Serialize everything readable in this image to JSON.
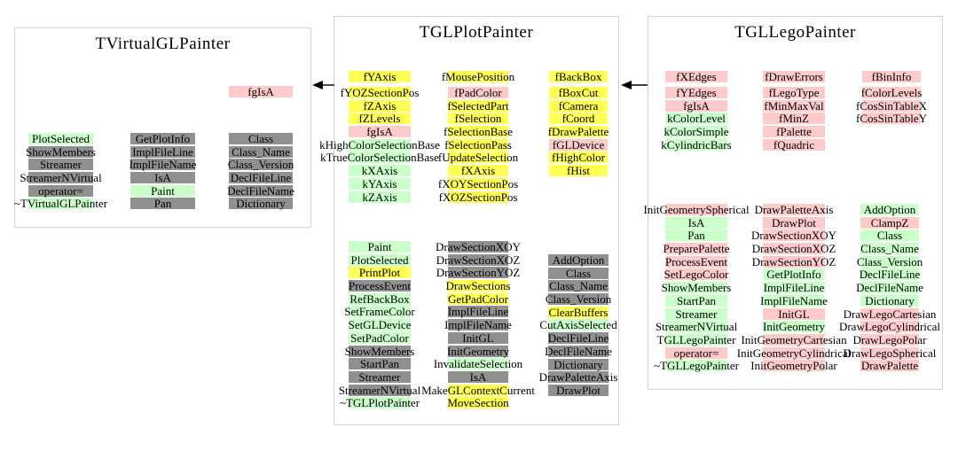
{
  "palette": {
    "yellow": "#ffff54",
    "pink": "#ffcaca",
    "green": "#caffca",
    "gray": "#909090"
  },
  "relations": [
    {
      "from": "TGLPlotPainter",
      "to": "TVirtualGLPainter"
    },
    {
      "from": "TGLLegoPainter",
      "to": "TGLPlotPainter"
    }
  ],
  "boxes": [
    {
      "title": "TVirtualGLPainter",
      "sections": [
        {
          "name": "data-members",
          "columns": [
            {
              "cells": [
                {
                  "label": "fgIsA",
                  "color": "pink"
                }
              ]
            }
          ]
        },
        {
          "name": "methods",
          "columns": [
            {
              "cells": [
                {
                  "label": "PlotSelected",
                  "color": "green"
                },
                {
                  "label": "ShowMembers",
                  "color": "gray"
                },
                {
                  "label": "Streamer",
                  "color": "gray"
                },
                {
                  "label": "StreamerNVirtual",
                  "color": "gray"
                },
                {
                  "label": "operator=",
                  "color": "gray"
                },
                {
                  "label": "~TVirtualGLPainter",
                  "color": "green"
                }
              ]
            },
            {
              "cells": [
                {
                  "label": "GetPlotInfo",
                  "color": "gray"
                },
                {
                  "label": "ImplFileLine",
                  "color": "gray"
                },
                {
                  "label": "ImplFileName",
                  "color": "gray"
                },
                {
                  "label": "IsA",
                  "color": "gray"
                },
                {
                  "label": "Paint",
                  "color": "green"
                },
                {
                  "label": "Pan",
                  "color": "gray"
                }
              ]
            },
            {
              "cells": [
                {
                  "label": "Class",
                  "color": "gray"
                },
                {
                  "label": "Class_Name",
                  "color": "gray"
                },
                {
                  "label": "Class_Version",
                  "color": "gray"
                },
                {
                  "label": "DeclFileLine",
                  "color": "gray"
                },
                {
                  "label": "DeclFileName",
                  "color": "gray"
                },
                {
                  "label": "Dictionary",
                  "color": "gray"
                }
              ]
            }
          ]
        }
      ]
    },
    {
      "title": "TGLPlotPainter",
      "sections": [
        {
          "name": "data-members",
          "columns": [
            {
              "cells": [
                {
                  "label": "fYAxis",
                  "color": "yellow"
                },
                {
                  "label": "fYOZSectionPos",
                  "color": "yellow"
                },
                {
                  "label": "fZAxis",
                  "color": "yellow"
                },
                {
                  "label": "fZLevels",
                  "color": "yellow"
                },
                {
                  "label": "fgIsA",
                  "color": "pink"
                },
                {
                  "label": "kHighColorSelectionBase",
                  "color": "green"
                },
                {
                  "label": "kTrueColorSelectionBase",
                  "color": "green"
                },
                {
                  "label": "kXAxis",
                  "color": "green"
                },
                {
                  "label": "kYAxis",
                  "color": "green"
                },
                {
                  "label": "kZAxis",
                  "color": "green"
                }
              ]
            },
            {
              "cells": [
                {
                  "label": "fMousePosition",
                  "color": "yellow"
                },
                {
                  "label": "fPadColor",
                  "color": "pink"
                },
                {
                  "label": "fSelectedPart",
                  "color": "yellow"
                },
                {
                  "label": "fSelection",
                  "color": "yellow"
                },
                {
                  "label": "fSelectionBase",
                  "color": "yellow"
                },
                {
                  "label": "fSelectionPass",
                  "color": "yellow"
                },
                {
                  "label": "fUpdateSelection",
                  "color": "yellow"
                },
                {
                  "label": "fXAxis",
                  "color": "yellow"
                },
                {
                  "label": "fXOYSectionPos",
                  "color": "yellow"
                },
                {
                  "label": "fXOZSectionPos",
                  "color": "yellow"
                }
              ]
            },
            {
              "cells": [
                {
                  "label": "fBackBox",
                  "color": "yellow"
                },
                {
                  "label": "fBoxCut",
                  "color": "yellow"
                },
                {
                  "label": "fCamera",
                  "color": "yellow"
                },
                {
                  "label": "fCoord",
                  "color": "yellow"
                },
                {
                  "label": "fDrawPalette",
                  "color": "yellow"
                },
                {
                  "label": "fGLDevice",
                  "color": "pink"
                },
                {
                  "label": "fHighColor",
                  "color": "yellow"
                },
                {
                  "label": "fHist",
                  "color": "yellow"
                }
              ]
            }
          ]
        },
        {
          "name": "methods",
          "columns": [
            {
              "cells": [
                {
                  "label": "Paint",
                  "color": "green"
                },
                {
                  "label": "PlotSelected",
                  "color": "green"
                },
                {
                  "label": "PrintPlot",
                  "color": "yellow"
                },
                {
                  "label": "ProcessEvent",
                  "color": "gray"
                },
                {
                  "label": "RefBackBox",
                  "color": "green"
                },
                {
                  "label": "SetFrameColor",
                  "color": "green"
                },
                {
                  "label": "SetGLDevice",
                  "color": "green"
                },
                {
                  "label": "SetPadColor",
                  "color": "green"
                },
                {
                  "label": "ShowMembers",
                  "color": "gray"
                },
                {
                  "label": "StartPan",
                  "color": "gray"
                },
                {
                  "label": "Streamer",
                  "color": "gray"
                },
                {
                  "label": "StreamerNVirtual",
                  "color": "gray"
                },
                {
                  "label": "~TGLPlotPainter",
                  "color": "green"
                }
              ]
            },
            {
              "cells": [
                {
                  "label": "DrawSectionXOY",
                  "color": "gray"
                },
                {
                  "label": "DrawSectionXOZ",
                  "color": "gray"
                },
                {
                  "label": "DrawSectionYOZ",
                  "color": "gray"
                },
                {
                  "label": "DrawSections",
                  "color": "yellow"
                },
                {
                  "label": "GetPadColor",
                  "color": "yellow"
                },
                {
                  "label": "ImplFileLine",
                  "color": "gray"
                },
                {
                  "label": "ImplFileName",
                  "color": "gray"
                },
                {
                  "label": "InitGL",
                  "color": "gray"
                },
                {
                  "label": "InitGeometry",
                  "color": "gray"
                },
                {
                  "label": "InvalidateSelection",
                  "color": "green"
                },
                {
                  "label": "IsA",
                  "color": "gray"
                },
                {
                  "label": "MakeGLContextCurrent",
                  "color": "yellow"
                },
                {
                  "label": "MoveSection",
                  "color": "yellow"
                }
              ]
            },
            {
              "cells": [
                {
                  "label": "AddOption",
                  "color": "gray"
                },
                {
                  "label": "Class",
                  "color": "gray"
                },
                {
                  "label": "Class_Name",
                  "color": "gray"
                },
                {
                  "label": "Class_Version",
                  "color": "gray"
                },
                {
                  "label": "ClearBuffers",
                  "color": "yellow"
                },
                {
                  "label": "CutAxisSelected",
                  "color": "green"
                },
                {
                  "label": "DeclFileLine",
                  "color": "gray"
                },
                {
                  "label": "DeclFileName",
                  "color": "gray"
                },
                {
                  "label": "Dictionary",
                  "color": "gray"
                },
                {
                  "label": "DrawPaletteAxis",
                  "color": "gray"
                },
                {
                  "label": "DrawPlot",
                  "color": "gray"
                }
              ]
            }
          ]
        }
      ]
    },
    {
      "title": "TGLLegoPainter",
      "sections": [
        {
          "name": "data-members",
          "columns": [
            {
              "cells": [
                {
                  "label": "fXEdges",
                  "color": "pink"
                },
                {
                  "label": "fYEdges",
                  "color": "pink"
                },
                {
                  "label": "fgIsA",
                  "color": "pink"
                },
                {
                  "label": "kColorLevel",
                  "color": "green"
                },
                {
                  "label": "kColorSimple",
                  "color": "green"
                },
                {
                  "label": "kCylindricBars",
                  "color": "green"
                }
              ]
            },
            {
              "cells": [
                {
                  "label": "fDrawErrors",
                  "color": "pink"
                },
                {
                  "label": "fLegoType",
                  "color": "pink"
                },
                {
                  "label": "fMinMaxVal",
                  "color": "pink"
                },
                {
                  "label": "fMinZ",
                  "color": "pink"
                },
                {
                  "label": "fPalette",
                  "color": "pink"
                },
                {
                  "label": "fQuadric",
                  "color": "pink"
                }
              ]
            },
            {
              "cells": [
                {
                  "label": "fBinInfo",
                  "color": "pink"
                },
                {
                  "label": "fColorLevels",
                  "color": "pink"
                },
                {
                  "label": "fCosSinTableX",
                  "color": "pink"
                },
                {
                  "label": "fCosSinTableY",
                  "color": "pink"
                }
              ]
            }
          ]
        },
        {
          "name": "methods",
          "columns": [
            {
              "cells": [
                {
                  "label": "InitGeometrySpherical",
                  "color": "pink"
                },
                {
                  "label": "IsA",
                  "color": "green"
                },
                {
                  "label": "Pan",
                  "color": "green"
                },
                {
                  "label": "PreparePalette",
                  "color": "pink"
                },
                {
                  "label": "ProcessEvent",
                  "color": "pink"
                },
                {
                  "label": "SetLegoColor",
                  "color": "pink"
                },
                {
                  "label": "ShowMembers",
                  "color": "green"
                },
                {
                  "label": "StartPan",
                  "color": "green"
                },
                {
                  "label": "Streamer",
                  "color": "green"
                },
                {
                  "label": "StreamerNVirtual",
                  "color": "green"
                },
                {
                  "label": "TGLLegoPainter",
                  "color": "green"
                },
                {
                  "label": "operator=",
                  "color": "pink"
                },
                {
                  "label": "~TGLLegoPainter",
                  "color": "green"
                }
              ]
            },
            {
              "cells": [
                {
                  "label": "DrawPaletteAxis",
                  "color": "pink"
                },
                {
                  "label": "DrawPlot",
                  "color": "pink"
                },
                {
                  "label": "DrawSectionXOY",
                  "color": "pink"
                },
                {
                  "label": "DrawSectionXOZ",
                  "color": "pink"
                },
                {
                  "label": "DrawSectionYOZ",
                  "color": "pink"
                },
                {
                  "label": "GetPlotInfo",
                  "color": "green"
                },
                {
                  "label": "ImplFileLine",
                  "color": "green"
                },
                {
                  "label": "ImplFileName",
                  "color": "green"
                },
                {
                  "label": "InitGL",
                  "color": "pink"
                },
                {
                  "label": "InitGeometry",
                  "color": "green"
                },
                {
                  "label": "InitGeometryCartesian",
                  "color": "pink"
                },
                {
                  "label": "InitGeometryCylindrical",
                  "color": "pink"
                },
                {
                  "label": "InitGeometryPolar",
                  "color": "pink"
                }
              ]
            },
            {
              "cells": [
                {
                  "label": "AddOption",
                  "color": "green"
                },
                {
                  "label": "ClampZ",
                  "color": "pink"
                },
                {
                  "label": "Class",
                  "color": "green"
                },
                {
                  "label": "Class_Name",
                  "color": "green"
                },
                {
                  "label": "Class_Version",
                  "color": "green"
                },
                {
                  "label": "DeclFileLine",
                  "color": "green"
                },
                {
                  "label": "DeclFileName",
                  "color": "green"
                },
                {
                  "label": "Dictionary",
                  "color": "green"
                },
                {
                  "label": "DrawLegoCartesian",
                  "color": "pink"
                },
                {
                  "label": "DrawLegoCylindrical",
                  "color": "pink"
                },
                {
                  "label": "DrawLegoPolar",
                  "color": "pink"
                },
                {
                  "label": "DrawLegoSpherical",
                  "color": "pink"
                },
                {
                  "label": "DrawPalette",
                  "color": "pink"
                }
              ]
            }
          ]
        }
      ]
    }
  ]
}
